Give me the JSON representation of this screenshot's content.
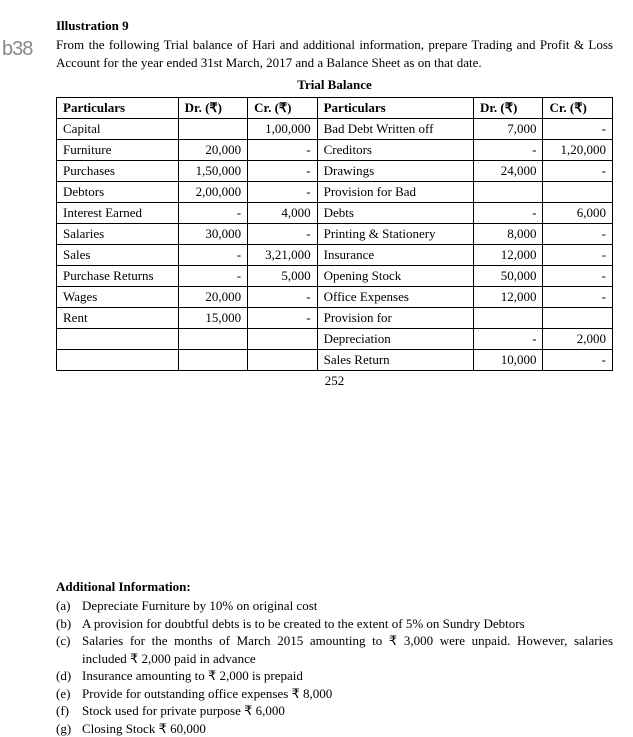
{
  "watermark": "b38",
  "heading": "Illustration 9",
  "intro": "From the following Trial balance of Hari and additional information, prepare Trading and Profit & Loss Account for the year ended 31st March, 2017 and a Balance Sheet as on that date.",
  "tb_title": "Trial Balance",
  "headers": {
    "particulars": "Particulars",
    "dr": "Dr. (₹)",
    "cr": "Cr. (₹)"
  },
  "rows": [
    {
      "lp": "Capital",
      "ld": "",
      "lc": "1,00,000",
      "rp": "Bad Debt Written off",
      "rd": "7,000",
      "rc": "-"
    },
    {
      "lp": "Furniture",
      "ld": "20,000",
      "lc": "-",
      "rp": "Creditors",
      "rd": "-",
      "rc": "1,20,000"
    },
    {
      "lp": "Purchases",
      "ld": "1,50,000",
      "lc": "-",
      "rp": "Drawings",
      "rd": "24,000",
      "rc": "-"
    },
    {
      "lp": "Debtors",
      "ld": "2,00,000",
      "lc": "-",
      "rp": "Provision for Bad",
      "rd": "",
      "rc": ""
    },
    {
      "lp": "Interest Earned",
      "ld": "-",
      "lc": "4,000",
      "rp": "Debts",
      "rd": "-",
      "rc": "6,000"
    },
    {
      "lp": "Salaries",
      "ld": "30,000",
      "lc": "-",
      "rp": "Printing & Stationery",
      "rd": "8,000",
      "rc": "-"
    },
    {
      "lp": "Sales",
      "ld": "-",
      "lc": "3,21,000",
      "rp": "Insurance",
      "rd": "12,000",
      "rc": "-"
    },
    {
      "lp": "Purchase Returns",
      "ld": "-",
      "lc": "5,000",
      "rp": "Opening Stock",
      "rd": "50,000",
      "rc": "-"
    },
    {
      "lp": "Wages",
      "ld": "20,000",
      "lc": "-",
      "rp": "Office Expenses",
      "rd": "12,000",
      "rc": "-"
    },
    {
      "lp": "Rent",
      "ld": "15,000",
      "lc": "-",
      "rp": "Provision for",
      "rd": "",
      "rc": ""
    },
    {
      "lp": "",
      "ld": "",
      "lc": "",
      "rp": "Depreciation",
      "rd": "-",
      "rc": "2,000"
    },
    {
      "lp": "",
      "ld": "",
      "lc": "",
      "rp": "Sales Return",
      "rd": "10,000",
      "rc": "-"
    }
  ],
  "pagenum": "252",
  "addl_heading": "Additional Information:",
  "addl": [
    {
      "mk": "(a)",
      "tx": "Depreciate Furniture by 10% on original cost"
    },
    {
      "mk": "(b)",
      "tx": "A provision for doubtful debts is to be created to the extent of 5% on Sundry Debtors"
    },
    {
      "mk": "(c)",
      "tx": "Salaries for the months of March 2015 amounting to ₹ 3,000 were unpaid. However, salaries included ₹ 2,000 paid in advance"
    },
    {
      "mk": "(d)",
      "tx": "Insurance amounting to ₹ 2,000 is prepaid"
    },
    {
      "mk": "(e)",
      "tx": "Provide for outstanding office expenses ₹ 8,000"
    },
    {
      "mk": "(f)",
      "tx": "Stock used for private purpose ₹ 6,000"
    },
    {
      "mk": "(g)",
      "tx": "Closing Stock ₹ 60,000"
    }
  ]
}
